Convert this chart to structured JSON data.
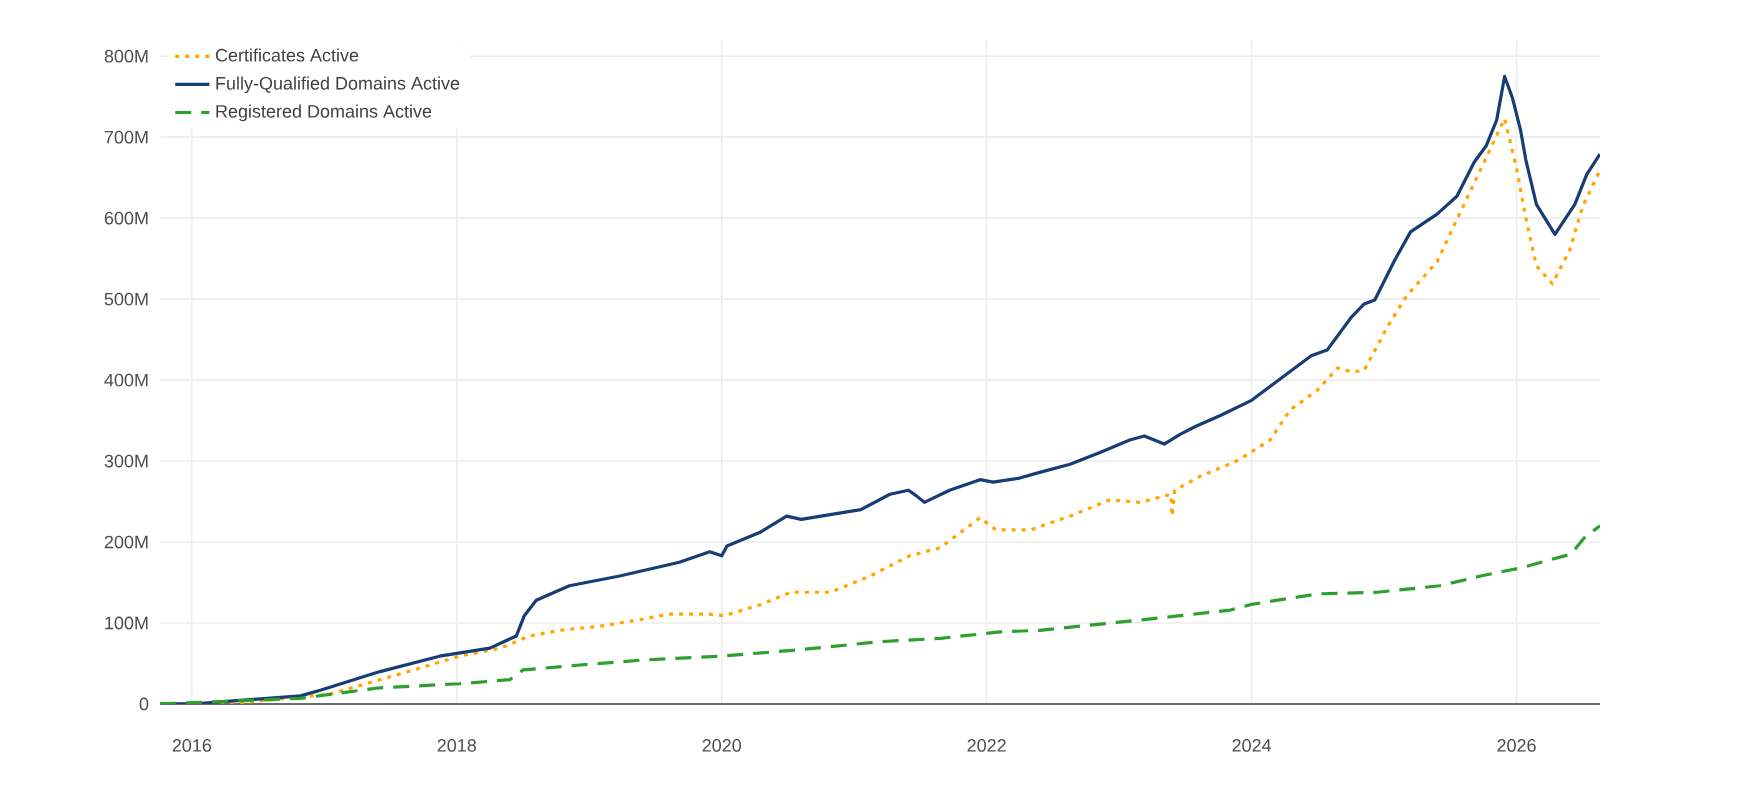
{
  "chart_data": {
    "type": "line",
    "xlim": [
      2015.76,
      2026.63
    ],
    "ylim": [
      0,
      820
    ],
    "xticks": [
      2016,
      2018,
      2020,
      2022,
      2024,
      2026
    ],
    "yticks": [
      {
        "value": 0,
        "label": "0"
      },
      {
        "value": 100,
        "label": "100M"
      },
      {
        "value": 200,
        "label": "200M"
      },
      {
        "value": 300,
        "label": "300M"
      },
      {
        "value": 400,
        "label": "400M"
      },
      {
        "value": 500,
        "label": "500M"
      },
      {
        "value": 600,
        "label": "600M"
      },
      {
        "value": 700,
        "label": "700M"
      },
      {
        "value": 800,
        "label": "800M"
      }
    ],
    "grid": true,
    "legend": "top left",
    "series": [
      {
        "name": "Certificates Active",
        "color": "#ffa600",
        "line_style": "dotted",
        "x": [
          2015.76,
          2016.27,
          2017.04,
          2017.57,
          2018.02,
          2018.33,
          2018.55,
          2018.78,
          2019.08,
          2019.38,
          2019.6,
          2019.9,
          2020.02,
          2020.3,
          2020.52,
          2020.82,
          2021.12,
          2021.42,
          2021.65,
          2021.95,
          2022.07,
          2022.33,
          2022.63,
          2022.93,
          2023.16,
          2023.39,
          2023.4,
          2023.42,
          2023.61,
          2023.9,
          2024.14,
          2024.29,
          2024.5,
          2024.65,
          2024.76,
          2024.85,
          2025.03,
          2025.17,
          2025.4,
          2025.56,
          2025.74,
          2025.91,
          2026.0,
          2026.07,
          2026.15,
          2026.27,
          2026.4,
          2026.5,
          2026.63
        ],
        "values": [
          0,
          0,
          12,
          37,
          59,
          69,
          84,
          91,
          96,
          104,
          111,
          111,
          109,
          123,
          138,
          138,
          158,
          183,
          193,
          230,
          215,
          215,
          232,
          252,
          249,
          259,
          232,
          264,
          281,
          301,
          326,
          363,
          388,
          415,
          410,
          412,
          467,
          504,
          546,
          602,
          664,
          723,
          662,
          600,
          541,
          519,
          560,
          615,
          659
        ]
      },
      {
        "name": "Fully-Qualified Domains Active",
        "color": "#173d74",
        "line_style": "solid",
        "x": [
          2015.76,
          2016.0,
          2016.82,
          2016.97,
          2017.42,
          2017.87,
          2018.25,
          2018.45,
          2018.51,
          2018.6,
          2018.85,
          2019.23,
          2019.68,
          2019.91,
          2020.0,
          2020.04,
          2020.29,
          2020.49,
          2020.6,
          2021.05,
          2021.27,
          2021.41,
          2021.47,
          2021.53,
          2021.72,
          2021.95,
          2022.05,
          2022.25,
          2022.4,
          2022.63,
          2022.86,
          2023.08,
          2023.19,
          2023.34,
          2023.46,
          2023.58,
          2023.76,
          2024.0,
          2024.22,
          2024.45,
          2024.57,
          2024.75,
          2024.85,
          2024.93,
          2025.08,
          2025.2,
          2025.4,
          2025.55,
          2025.68,
          2025.77,
          2025.85,
          2025.91,
          2025.97,
          2026.03,
          2026.07,
          2026.15,
          2026.29,
          2026.44,
          2026.53,
          2026.63
        ],
        "values": [
          0,
          0,
          10,
          17,
          40,
          59,
          69,
          84,
          109,
          128,
          146,
          158,
          175,
          188,
          183,
          195,
          212,
          232,
          228,
          240,
          259,
          264,
          257,
          249,
          264,
          277,
          274,
          279,
          286,
          296,
          311,
          326,
          331,
          321,
          333,
          343,
          356,
          375,
          402,
          430,
          437,
          477,
          494,
          499,
          548,
          583,
          605,
          627,
          669,
          689,
          721,
          775,
          748,
          709,
          672,
          617,
          580,
          617,
          654,
          679
        ]
      },
      {
        "name": "Registered Domains Active",
        "color": "#2ca02c",
        "line_style": "dashed",
        "x": [
          2015.76,
          2016.82,
          2017.42,
          2018.02,
          2018.4,
          2018.5,
          2018.85,
          2019.38,
          2019.99,
          2020.59,
          2021.2,
          2021.65,
          2022.1,
          2022.4,
          2023.0,
          2023.46,
          2023.84,
          2024.0,
          2024.5,
          2024.95,
          2025.42,
          2025.73,
          2026.03,
          2026.41,
          2026.51,
          2026.63
        ],
        "values": [
          0,
          7,
          20,
          25,
          30,
          42,
          47,
          54,
          59,
          67,
          77,
          81,
          89,
          91,
          101,
          109,
          116,
          123,
          136,
          138,
          146,
          158,
          168,
          185,
          205,
          220
        ]
      }
    ]
  }
}
